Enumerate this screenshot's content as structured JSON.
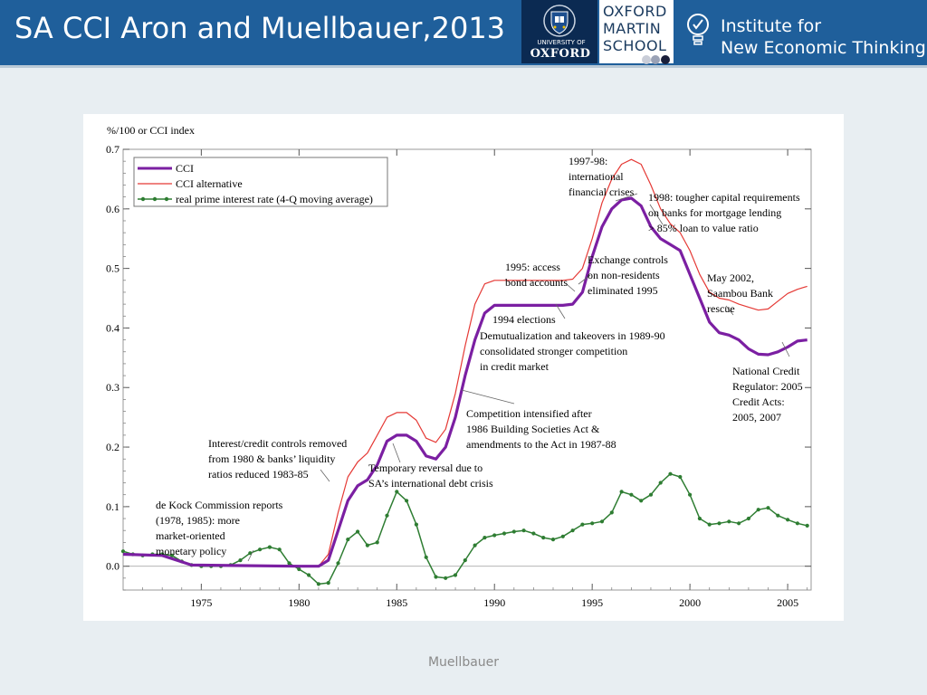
{
  "slide": {
    "title": "SA CCI Aron and Muellbauer,2013",
    "footer": "Muellbauer"
  },
  "logos": {
    "oxford_small": "UNIVERSITY OF",
    "oxford_big": "OXFORD",
    "martin_lines": [
      "OXFORD",
      "MARTIN",
      "SCHOOL"
    ],
    "inet_lines": [
      "Institute for",
      "New Economic Thinking"
    ]
  },
  "chart_data": {
    "type": "line",
    "ylabel": "%/100 or CCI index",
    "ylim": [
      -0.04,
      0.7
    ],
    "xlim": [
      1971,
      2006.2
    ],
    "y_ticks": [
      0.0,
      0.1,
      0.2,
      0.3,
      0.4,
      0.5,
      0.6,
      0.7
    ],
    "y_tick_labels": [
      "0.0",
      "0.1",
      "0.2",
      "0.3",
      "0.4",
      "0.5",
      "0.6",
      "0.7"
    ],
    "x_ticks": [
      1975,
      1980,
      1985,
      1990,
      1995,
      2000,
      2005
    ],
    "x_tick_labels": [
      "1975",
      "1980",
      "1985",
      "1990",
      "1995",
      "2000",
      "2005"
    ],
    "legend": [
      {
        "label": "CCI",
        "color": "#7b1fa2",
        "style": "thick-line"
      },
      {
        "label": "CCI alternative",
        "color": "#e53935",
        "style": "thin-line"
      },
      {
        "label": "real prime interest rate (4-Q moving average)",
        "color": "#2e7d32",
        "style": "line-markers"
      }
    ],
    "series": [
      {
        "name": "CCI",
        "color": "#7b1fa2",
        "points": [
          [
            1971,
            0.02
          ],
          [
            1973,
            0.018
          ],
          [
            1974.5,
            0.002
          ],
          [
            1980,
            0.0
          ],
          [
            1981,
            0.0
          ],
          [
            1981.5,
            0.01
          ],
          [
            1982,
            0.06
          ],
          [
            1982.5,
            0.11
          ],
          [
            1983,
            0.135
          ],
          [
            1983.5,
            0.145
          ],
          [
            1984,
            0.17
          ],
          [
            1984.5,
            0.21
          ],
          [
            1985,
            0.22
          ],
          [
            1985.5,
            0.22
          ],
          [
            1986,
            0.21
          ],
          [
            1986.5,
            0.185
          ],
          [
            1987,
            0.18
          ],
          [
            1987.5,
            0.2
          ],
          [
            1988,
            0.25
          ],
          [
            1988.5,
            0.32
          ],
          [
            1989,
            0.38
          ],
          [
            1989.5,
            0.425
          ],
          [
            1990,
            0.438
          ],
          [
            1993.5,
            0.438
          ],
          [
            1994,
            0.44
          ],
          [
            1994.5,
            0.46
          ],
          [
            1995,
            0.52
          ],
          [
            1995.5,
            0.57
          ],
          [
            1996,
            0.6
          ],
          [
            1996.5,
            0.615
          ],
          [
            1997,
            0.618
          ],
          [
            1997.5,
            0.605
          ],
          [
            1998,
            0.57
          ],
          [
            1998.5,
            0.55
          ],
          [
            1999,
            0.54
          ],
          [
            1999.5,
            0.53
          ],
          [
            2000,
            0.49
          ],
          [
            2000.5,
            0.45
          ],
          [
            2001,
            0.41
          ],
          [
            2001.5,
            0.392
          ],
          [
            2002,
            0.388
          ],
          [
            2002.5,
            0.38
          ],
          [
            2003,
            0.365
          ],
          [
            2003.5,
            0.356
          ],
          [
            2004,
            0.355
          ],
          [
            2004.5,
            0.36
          ],
          [
            2005,
            0.368
          ],
          [
            2005.5,
            0.378
          ],
          [
            2006,
            0.38
          ]
        ]
      },
      {
        "name": "CCI alternative",
        "color": "#e53935",
        "points": [
          [
            1971,
            0.02
          ],
          [
            1973,
            0.018
          ],
          [
            1974.5,
            0.002
          ],
          [
            1980,
            0.0
          ],
          [
            1981,
            0.0
          ],
          [
            1981.5,
            0.02
          ],
          [
            1982,
            0.09
          ],
          [
            1982.5,
            0.15
          ],
          [
            1983,
            0.175
          ],
          [
            1983.5,
            0.19
          ],
          [
            1984,
            0.22
          ],
          [
            1984.5,
            0.25
          ],
          [
            1985,
            0.258
          ],
          [
            1985.5,
            0.258
          ],
          [
            1986,
            0.245
          ],
          [
            1986.5,
            0.215
          ],
          [
            1987,
            0.208
          ],
          [
            1987.5,
            0.23
          ],
          [
            1988,
            0.29
          ],
          [
            1988.5,
            0.37
          ],
          [
            1989,
            0.44
          ],
          [
            1989.5,
            0.474
          ],
          [
            1990,
            0.48
          ],
          [
            1993.5,
            0.48
          ],
          [
            1994,
            0.482
          ],
          [
            1994.5,
            0.5
          ],
          [
            1995,
            0.55
          ],
          [
            1995.5,
            0.61
          ],
          [
            1996,
            0.65
          ],
          [
            1996.5,
            0.675
          ],
          [
            1997,
            0.683
          ],
          [
            1997.5,
            0.675
          ],
          [
            1998,
            0.64
          ],
          [
            1998.5,
            0.6
          ],
          [
            1999,
            0.575
          ],
          [
            1999.5,
            0.56
          ],
          [
            2000,
            0.53
          ],
          [
            2000.5,
            0.49
          ],
          [
            2001,
            0.46
          ],
          [
            2001.5,
            0.45
          ],
          [
            2002,
            0.447
          ],
          [
            2002.5,
            0.44
          ],
          [
            2003,
            0.435
          ],
          [
            2003.5,
            0.43
          ],
          [
            2004,
            0.432
          ],
          [
            2004.5,
            0.445
          ],
          [
            2005,
            0.458
          ],
          [
            2005.5,
            0.465
          ],
          [
            2006,
            0.47
          ]
        ]
      },
      {
        "name": "real prime interest rate (4-Q moving average)",
        "color": "#2e7d32",
        "points": [
          [
            1971,
            0.025
          ],
          [
            1971.5,
            0.02
          ],
          [
            1972,
            0.018
          ],
          [
            1972.5,
            0.02
          ],
          [
            1973,
            0.02
          ],
          [
            1973.5,
            0.018
          ],
          [
            1974,
            0.008
          ],
          [
            1974.5,
            0.002
          ],
          [
            1975,
            0.0
          ],
          [
            1975.5,
            0.0
          ],
          [
            1976,
            0.0
          ],
          [
            1976.5,
            0.002
          ],
          [
            1977,
            0.01
          ],
          [
            1977.5,
            0.022
          ],
          [
            1978,
            0.028
          ],
          [
            1978.5,
            0.032
          ],
          [
            1979,
            0.028
          ],
          [
            1979.5,
            0.005
          ],
          [
            1980,
            -0.005
          ],
          [
            1980.5,
            -0.015
          ],
          [
            1981,
            -0.03
          ],
          [
            1981.5,
            -0.028
          ],
          [
            1982,
            0.005
          ],
          [
            1982.5,
            0.045
          ],
          [
            1983,
            0.058
          ],
          [
            1983.5,
            0.035
          ],
          [
            1984,
            0.04
          ],
          [
            1984.5,
            0.085
          ],
          [
            1985,
            0.125
          ],
          [
            1985.5,
            0.11
          ],
          [
            1986,
            0.07
          ],
          [
            1986.5,
            0.015
          ],
          [
            1987,
            -0.018
          ],
          [
            1987.5,
            -0.02
          ],
          [
            1988,
            -0.015
          ],
          [
            1988.5,
            0.01
          ],
          [
            1989,
            0.035
          ],
          [
            1989.5,
            0.048
          ],
          [
            1990,
            0.052
          ],
          [
            1990.5,
            0.055
          ],
          [
            1991,
            0.058
          ],
          [
            1991.5,
            0.06
          ],
          [
            1992,
            0.055
          ],
          [
            1992.5,
            0.048
          ],
          [
            1993,
            0.045
          ],
          [
            1993.5,
            0.05
          ],
          [
            1994,
            0.06
          ],
          [
            1994.5,
            0.07
          ],
          [
            1995,
            0.072
          ],
          [
            1995.5,
            0.075
          ],
          [
            1996,
            0.09
          ],
          [
            1996.5,
            0.125
          ],
          [
            1997,
            0.12
          ],
          [
            1997.5,
            0.11
          ],
          [
            1998,
            0.12
          ],
          [
            1998.5,
            0.14
          ],
          [
            1999,
            0.155
          ],
          [
            1999.5,
            0.15
          ],
          [
            2000,
            0.12
          ],
          [
            2000.5,
            0.08
          ],
          [
            2001,
            0.07
          ],
          [
            2001.5,
            0.072
          ],
          [
            2002,
            0.075
          ],
          [
            2002.5,
            0.072
          ],
          [
            2003,
            0.08
          ],
          [
            2003.5,
            0.095
          ],
          [
            2004,
            0.098
          ],
          [
            2004.5,
            0.085
          ],
          [
            2005,
            0.078
          ],
          [
            2005.5,
            0.072
          ],
          [
            2006,
            0.068
          ]
        ]
      }
    ],
    "annotations": [
      {
        "lines": [
          "1997-98:",
          "international",
          "financial crises"
        ]
      },
      {
        "lines": [
          "1998: tougher capital requirements",
          "on banks for mortgage lending",
          "> 85% loan to value ratio"
        ]
      },
      {
        "lines": [
          "Exchange controls",
          "on non-residents",
          "eliminated 1995"
        ]
      },
      {
        "lines": [
          "1995: access",
          "bond accounts"
        ]
      },
      {
        "lines": [
          "May 2002,",
          "Saambou Bank",
          "rescue"
        ]
      },
      {
        "lines": [
          "1994 elections"
        ]
      },
      {
        "lines": [
          "Demutualization and takeovers in 1989-90",
          "consolidated stronger competition",
          "in credit market"
        ]
      },
      {
        "lines": [
          "National Credit",
          "Regulator: 2005",
          "Credit Acts:",
          "2005, 2007"
        ]
      },
      {
        "lines": [
          "Competition intensified after",
          "1986 Building Societies Act &",
          "amendments to the Act in 1987-88"
        ]
      },
      {
        "lines": [
          "Interest/credit controls removed",
          "from 1980 & banks’ liquidity",
          "ratios reduced 1983-85"
        ]
      },
      {
        "lines": [
          "Temporary reversal due to",
          "SA’s international debt crisis"
        ]
      },
      {
        "lines": [
          "de Kock Commission reports",
          "(1978, 1985):  more",
          "market-oriented",
          "monetary policy"
        ]
      }
    ]
  }
}
